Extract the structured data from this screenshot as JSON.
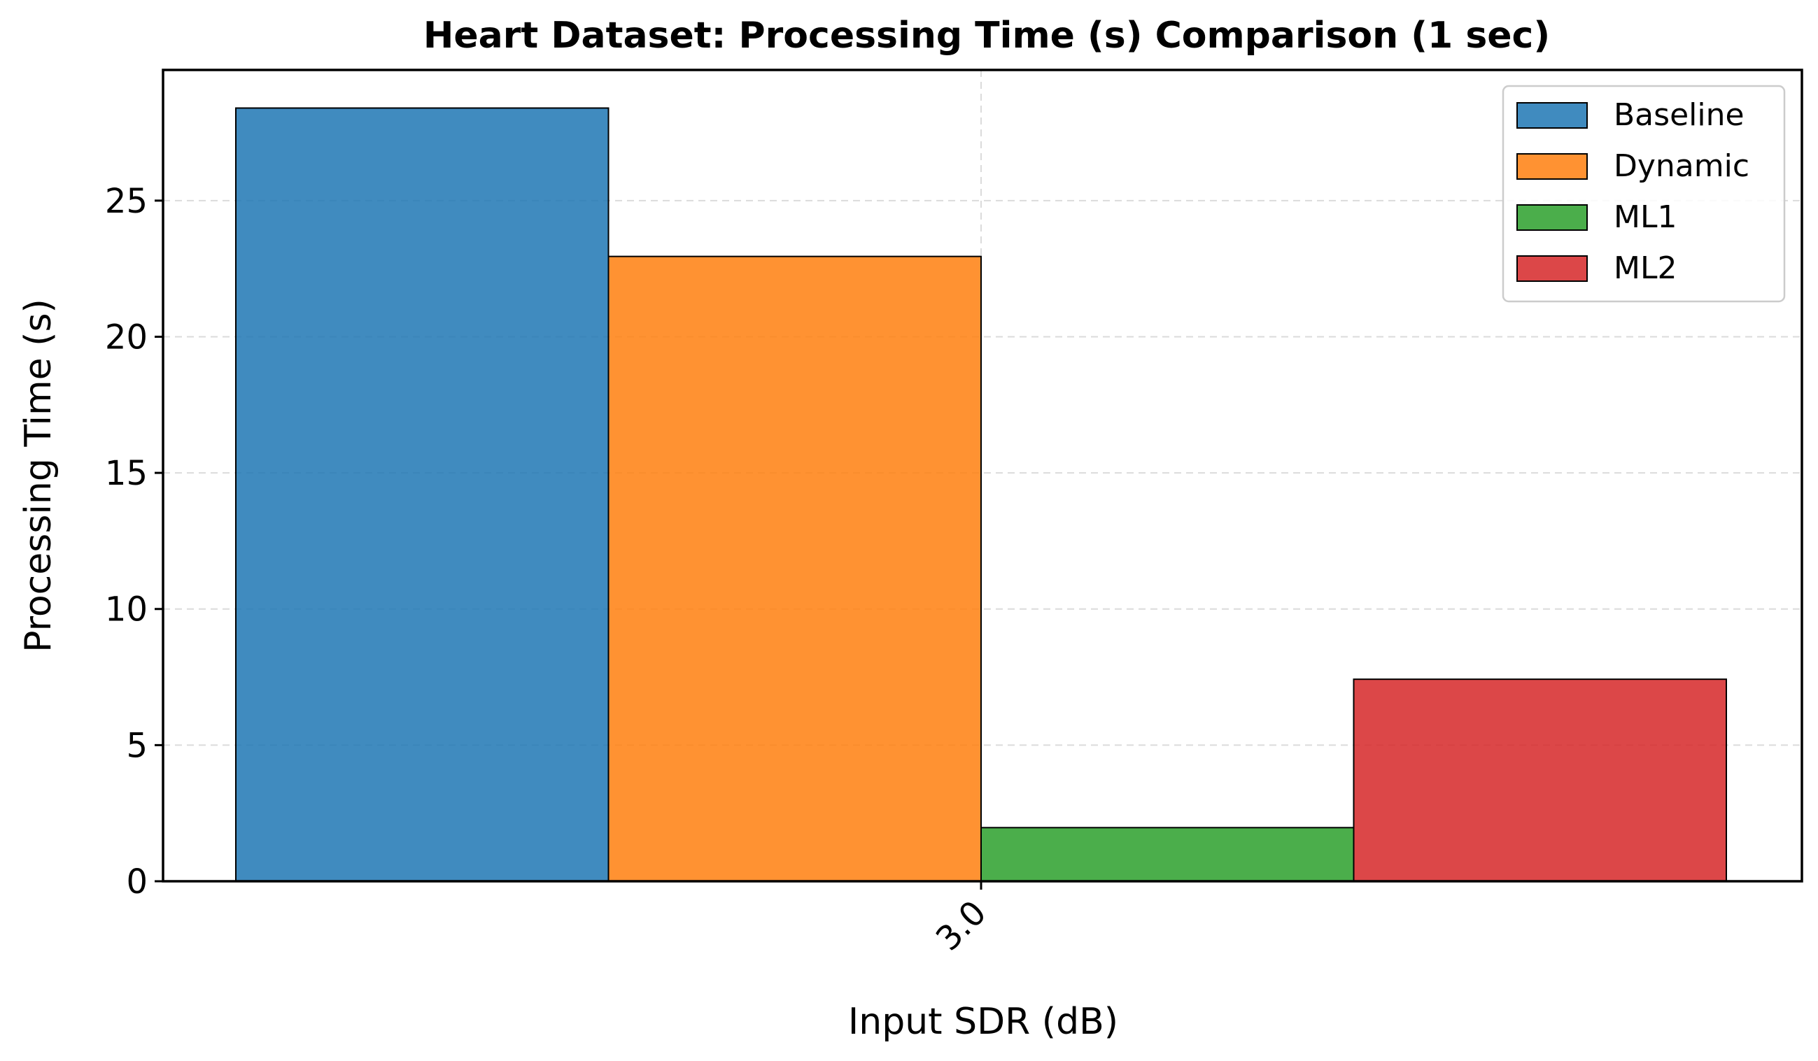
{
  "chart_data": {
    "type": "bar",
    "title": "Heart Dataset: Processing Time (s) Comparison (1 sec)",
    "xlabel": "Input SDR (dB)",
    "ylabel": "Processing Time (s)",
    "categories": [
      "3.0"
    ],
    "series": [
      {
        "name": "Baseline",
        "values": [
          28.4
        ],
        "color": "#1f77b4"
      },
      {
        "name": "Dynamic",
        "values": [
          22.95
        ],
        "color": "#ff7f0e"
      },
      {
        "name": "ML1",
        "values": [
          1.97
        ],
        "color": "#2ca02c"
      },
      {
        "name": "ML2",
        "values": [
          7.42
        ],
        "color": "#d62728"
      }
    ],
    "yticks": [
      "0",
      "5",
      "10",
      "15",
      "20",
      "25"
    ],
    "ylim": [
      0,
      29.8
    ],
    "grid": true,
    "legend_position": "top-right"
  }
}
